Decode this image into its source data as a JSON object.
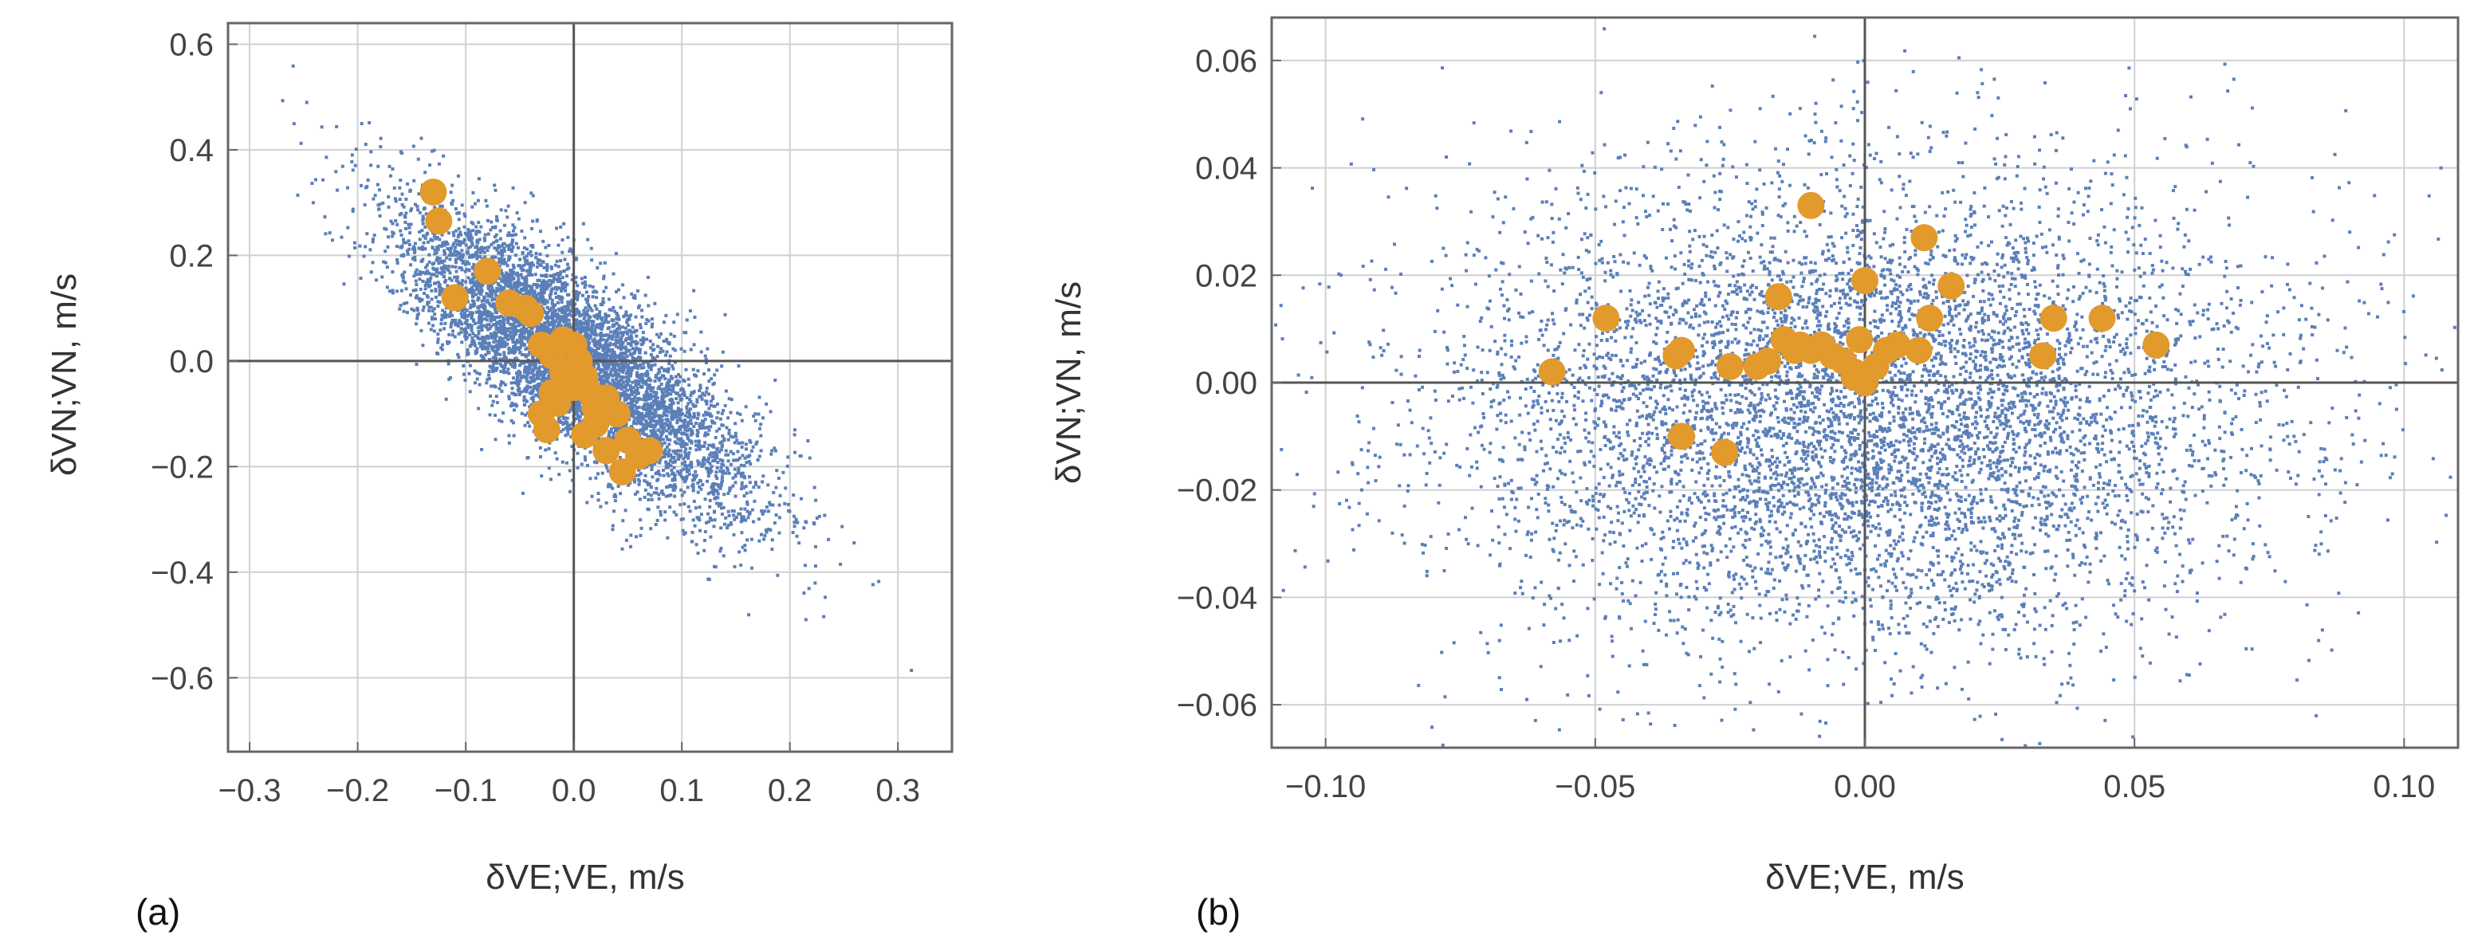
{
  "chart_data": [
    {
      "type": "scatter",
      "panel_label": "(a)",
      "xlabel": "δVE;VE, m/s",
      "ylabel": "δVN;VN, m/s",
      "xlim": [
        -0.32,
        0.35
      ],
      "ylim": [
        -0.74,
        0.64
      ],
      "xticks": [
        -0.3,
        -0.2,
        -0.1,
        0.0,
        0.1,
        0.2,
        0.3
      ],
      "xtick_labels": [
        "−0.3",
        "−0.2",
        "−0.1",
        "0.0",
        "0.1",
        "0.2",
        "0.3"
      ],
      "yticks": [
        0.6,
        0.4,
        0.2,
        0.0,
        -0.2,
        -0.4,
        -0.6
      ],
      "ytick_labels": [
        "0.6",
        "0.4",
        "0.2",
        "0.0",
        "−0.2",
        "−0.4",
        "−0.6"
      ],
      "grid": true,
      "series": [
        {
          "name": "background cloud",
          "color": "#5b7fb8",
          "distribution": "correlated gaussian",
          "mean": [
            0.0,
            0.0
          ],
          "sd": [
            0.08,
            0.14
          ],
          "correlation": -0.8,
          "count": 6000
        },
        {
          "name": "highlighted points",
          "color": "#e29a2c",
          "points": [
            [
              -0.13,
              0.32
            ],
            [
              -0.125,
              0.265
            ],
            [
              -0.11,
              0.12
            ],
            [
              -0.08,
              0.17
            ],
            [
              -0.06,
              0.11
            ],
            [
              -0.045,
              0.1
            ],
            [
              -0.04,
              0.09
            ],
            [
              -0.03,
              0.03
            ],
            [
              -0.02,
              0.01
            ],
            [
              -0.01,
              0.04
            ],
            [
              0.0,
              0.03
            ],
            [
              0.005,
              0.0
            ],
            [
              0.01,
              -0.03
            ],
            [
              -0.01,
              -0.02
            ],
            [
              -0.02,
              -0.06
            ],
            [
              -0.015,
              -0.08
            ],
            [
              0.0,
              -0.05
            ],
            [
              0.015,
              -0.06
            ],
            [
              0.02,
              -0.09
            ],
            [
              -0.03,
              -0.1
            ],
            [
              -0.025,
              -0.13
            ],
            [
              0.03,
              -0.07
            ],
            [
              0.04,
              -0.1
            ],
            [
              0.05,
              -0.15
            ],
            [
              0.06,
              -0.18
            ],
            [
              0.045,
              -0.21
            ],
            [
              0.03,
              -0.17
            ],
            [
              0.02,
              -0.12
            ],
            [
              0.07,
              -0.17
            ],
            [
              0.01,
              -0.14
            ]
          ]
        }
      ]
    },
    {
      "type": "scatter",
      "panel_label": "(b)",
      "xlabel": "δVE;VE, m/s",
      "ylabel": "δVN;VN, m/s",
      "xlim": [
        -0.11,
        0.11
      ],
      "ylim": [
        -0.068,
        0.068
      ],
      "xticks": [
        -0.1,
        -0.05,
        0.0,
        0.05,
        0.1
      ],
      "xtick_labels": [
        "−0.10",
        "−0.05",
        "0.00",
        "0.05",
        "0.10"
      ],
      "yticks": [
        0.06,
        0.04,
        0.02,
        0.0,
        -0.02,
        -0.04,
        -0.06
      ],
      "ytick_labels": [
        "0.06",
        "0.04",
        "0.02",
        "0.00",
        "−0.02",
        "−0.04",
        "−0.06"
      ],
      "grid": true,
      "series": [
        {
          "name": "background cloud",
          "color": "#5b7fb8",
          "distribution": "gaussian",
          "mean": [
            0.0,
            -0.005
          ],
          "sd": [
            0.038,
            0.022
          ],
          "correlation": 0.0,
          "count": 7000
        },
        {
          "name": "highlighted points",
          "color": "#e29a2c",
          "points": [
            [
              -0.058,
              0.002
            ],
            [
              -0.048,
              0.012
            ],
            [
              -0.035,
              0.005
            ],
            [
              -0.034,
              0.006
            ],
            [
              -0.034,
              -0.01
            ],
            [
              -0.026,
              -0.013
            ],
            [
              -0.025,
              0.003
            ],
            [
              -0.02,
              0.003
            ],
            [
              -0.018,
              0.004
            ],
            [
              -0.016,
              0.016
            ],
            [
              -0.015,
              0.008
            ],
            [
              -0.013,
              0.006
            ],
            [
              -0.012,
              0.007
            ],
            [
              -0.01,
              0.033
            ],
            [
              -0.01,
              0.006
            ],
            [
              -0.008,
              0.007
            ],
            [
              -0.006,
              0.005
            ],
            [
              -0.004,
              0.004
            ],
            [
              -0.002,
              0.001
            ],
            [
              -0.001,
              0.008
            ],
            [
              0.0,
              0.019
            ],
            [
              0.002,
              0.003
            ],
            [
              0.004,
              0.006
            ],
            [
              0.006,
              0.007
            ],
            [
              0.01,
              0.006
            ],
            [
              0.011,
              0.027
            ],
            [
              0.012,
              0.012
            ],
            [
              0.016,
              0.018
            ],
            [
              0.033,
              0.005
            ],
            [
              0.035,
              0.012
            ],
            [
              0.044,
              0.012
            ],
            [
              0.054,
              0.007
            ],
            [
              0.0,
              0.0
            ],
            [
              -0.002,
              0.002
            ]
          ]
        }
      ]
    }
  ]
}
